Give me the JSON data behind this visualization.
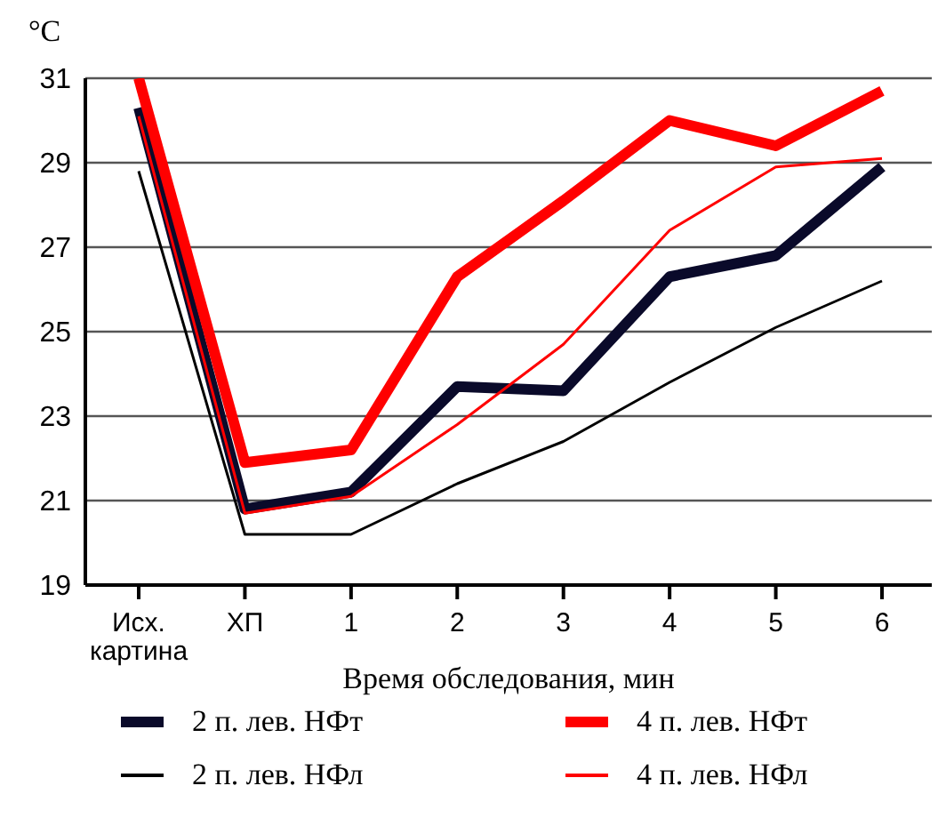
{
  "chart_data": {
    "type": "line",
    "ylabel": "°C",
    "xlabel": "Время обследования, мин",
    "categories": [
      "Исх. картина",
      "ХП",
      "1",
      "2",
      "3",
      "4",
      "5",
      "6"
    ],
    "series": [
      {
        "name": "2 п. лев. НФт",
        "color": "#0a0a2a",
        "values": [
          30.3,
          20.8,
          21.2,
          23.7,
          23.6,
          26.3,
          26.8,
          28.9
        ]
      },
      {
        "name": "2 п. лев. НФл",
        "color": "#000000",
        "values": [
          28.8,
          20.2,
          20.2,
          21.4,
          22.4,
          23.8,
          25.1,
          26.2
        ]
      },
      {
        "name": "4 п. лев. НФт",
        "color": "#ff0000",
        "values": [
          31,
          21.9,
          22.2,
          26.3,
          28.1,
          30.0,
          29.4,
          30.7
        ]
      },
      {
        "name": "4 п. лев. НФл",
        "color": "#ff0000",
        "values": [
          30.1,
          20.7,
          21.1,
          22.8,
          24.7,
          27.4,
          28.9,
          29.1
        ]
      }
    ],
    "ylim": [
      19,
      31
    ],
    "yticks": [
      19,
      21,
      23,
      25,
      27,
      29,
      31
    ],
    "grid": "y",
    "legend": "bottom",
    "marker": "none",
    "line_style": "solid"
  }
}
